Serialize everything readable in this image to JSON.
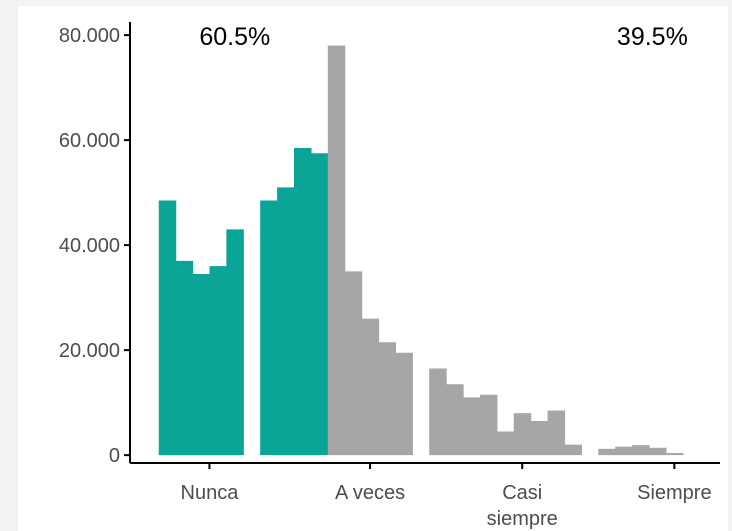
{
  "chart_data": {
    "type": "bar",
    "y_tick_labels": [
      "0",
      "20.000",
      "40.000",
      "60.000",
      "80.000"
    ],
    "y_ticks": [
      0,
      20000,
      40000,
      60000,
      80000
    ],
    "ylim": [
      -1500,
      82500
    ],
    "x_tick_labels": [
      {
        "lines": [
          "Nunca"
        ],
        "pos": 3
      },
      {
        "lines": [
          "A veces"
        ],
        "pos": 12.5
      },
      {
        "lines": [
          "Casi",
          "siempre"
        ],
        "pos": 21.5
      },
      {
        "lines": [
          "Siempre"
        ],
        "pos": 30.5
      }
    ],
    "xlim": [
      -1.7,
      33.2
    ],
    "annotations": [
      {
        "text": "60.5%",
        "pos": 4.5
      },
      {
        "text": "39.5%",
        "pos": 29.2
      }
    ],
    "series": [
      {
        "color": "#0ba597",
        "bins": [
          {
            "x": 0,
            "value": 48500
          },
          {
            "x": 1,
            "value": 37000
          },
          {
            "x": 2,
            "value": 34500
          },
          {
            "x": 3,
            "value": 36000
          },
          {
            "x": 4,
            "value": 43000
          },
          {
            "x": 6,
            "value": 48500
          },
          {
            "x": 7,
            "value": 51000
          },
          {
            "x": 8,
            "value": 58500
          },
          {
            "x": 9,
            "value": 57500
          }
        ]
      },
      {
        "color": "#a6a6a6",
        "bins": [
          {
            "x": 10,
            "value": 78000
          },
          {
            "x": 11,
            "value": 35000
          },
          {
            "x": 12,
            "value": 26000
          },
          {
            "x": 13,
            "value": 21500
          },
          {
            "x": 14,
            "value": 19500
          },
          {
            "x": 16,
            "value": 16500
          },
          {
            "x": 17,
            "value": 13500
          },
          {
            "x": 18,
            "value": 11000
          },
          {
            "x": 19,
            "value": 11500
          },
          {
            "x": 20,
            "value": 4500
          },
          {
            "x": 21,
            "value": 8000
          },
          {
            "x": 22,
            "value": 6500
          },
          {
            "x": 23,
            "value": 8500
          },
          {
            "x": 24,
            "value": 2000
          },
          {
            "x": 26,
            "value": 1200
          },
          {
            "x": 27,
            "value": 1600
          },
          {
            "x": 28,
            "value": 1900
          },
          {
            "x": 29,
            "value": 1400
          },
          {
            "x": 30,
            "value": 400
          }
        ]
      }
    ]
  }
}
